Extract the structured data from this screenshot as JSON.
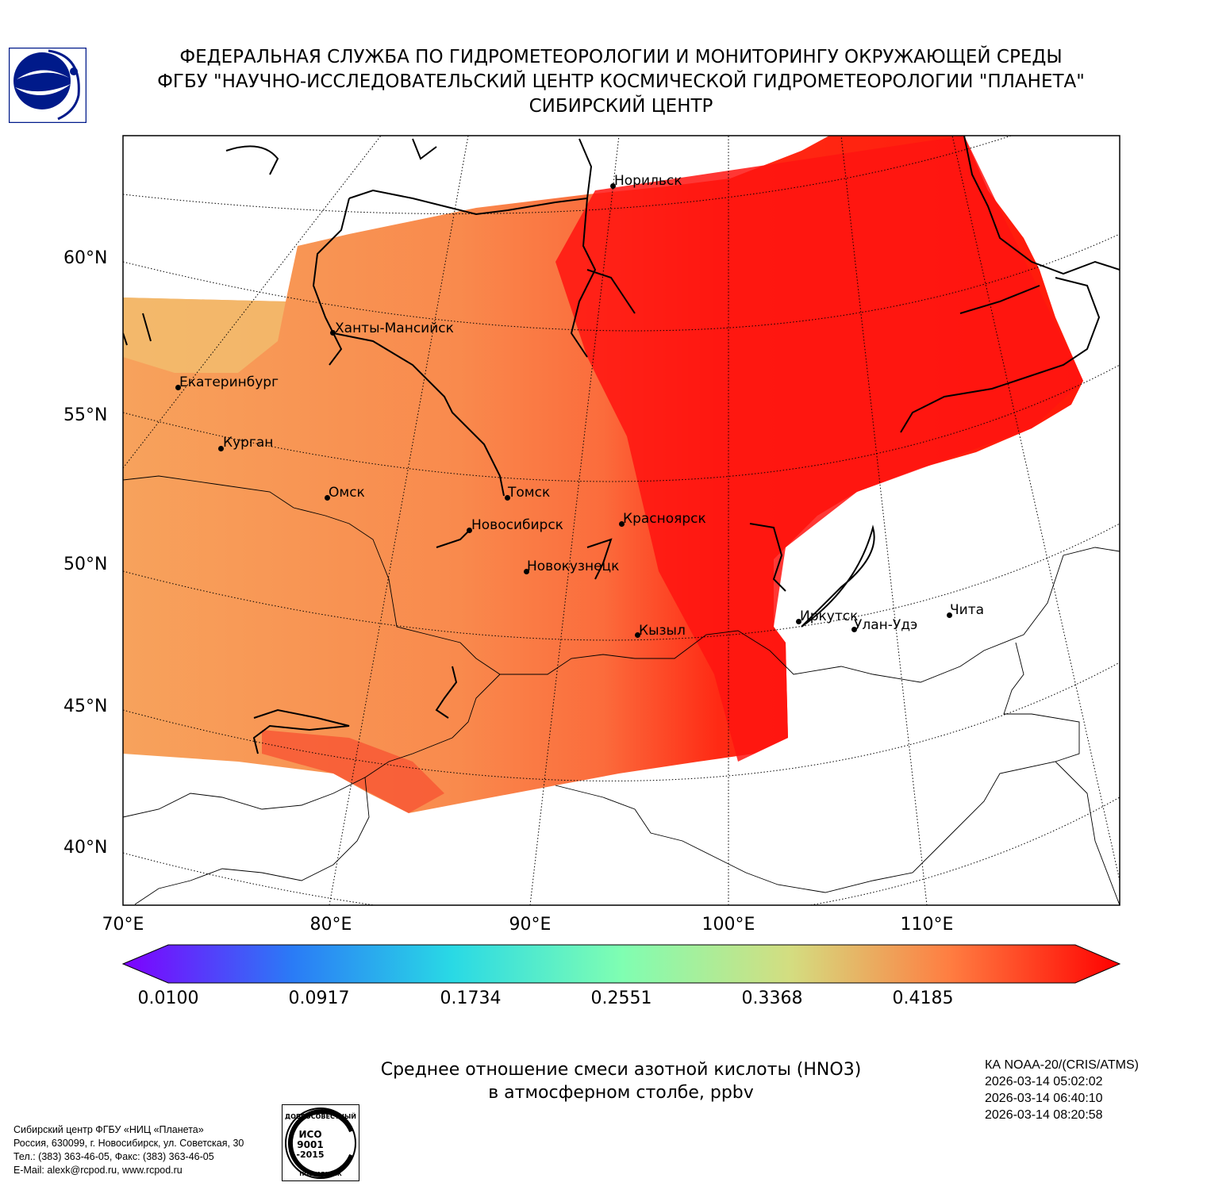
{
  "header": {
    "line1": "ФЕДЕРАЛЬНАЯ СЛУЖБА ПО ГИДРОМЕТЕОРОЛОГИИ И МОНИТОРИНГУ ОКРУЖАЮЩЕЙ СРЕДЫ",
    "line2": "ФГБУ \"НАУЧНО-ИССЛЕДОВАТЕЛЬСКИЙ ЦЕНТР КОСМИЧЕСКОЙ ГИДРОМЕТЕОРОЛОГИИ \"ПЛАНЕТА\"",
    "line3": "СИБИРСКИЙ ЦЕНТР"
  },
  "map": {
    "lat_labels": [
      "60°N",
      "55°N",
      "50°N",
      "45°N",
      "40°N"
    ],
    "lon_labels": [
      "70°E",
      "80°E",
      "90°E",
      "100°E",
      "110°E"
    ],
    "cities": [
      {
        "name": "Норильск"
      },
      {
        "name": "Ханты-Мансийск"
      },
      {
        "name": "Екатеринбург"
      },
      {
        "name": "Курган"
      },
      {
        "name": "Омск"
      },
      {
        "name": "Томск"
      },
      {
        "name": "Новосибирск"
      },
      {
        "name": "Красноярск"
      },
      {
        "name": "Новокузнецк"
      },
      {
        "name": "Иркутск"
      },
      {
        "name": "Улан-Удэ"
      },
      {
        "name": "Чита"
      },
      {
        "name": "Кызыл"
      }
    ]
  },
  "colorbar": {
    "ticks": [
      "0.0100",
      "0.0917",
      "0.1734",
      "0.2551",
      "0.3368",
      "0.4185"
    ],
    "colors": [
      "#7f00ff",
      "#2a7bf6",
      "#29d9e5",
      "#7ffeb2",
      "#d4dd80",
      "#ff7d41",
      "#ff0000"
    ]
  },
  "title": {
    "line1": "Среднее отношение смеси азотной кислоты (HNO3)",
    "line2": "в атмосферном столбе, ppbv"
  },
  "satellite": {
    "name": "КА NOAA-20/(CRIS/ATMS)",
    "times": [
      "2026-03-14 05:02:02",
      "2026-03-14 06:40:10",
      "2026-03-14 08:20:58"
    ]
  },
  "footer": {
    "org": "Сибирский центр ФГБУ «НИЦ «Планета»",
    "address": "Россия, 630099, г. Новосибирск, ул. Советская, 30",
    "phone": "Тел.: (383) 363-46-05, Факс: (383) 363-46-05",
    "email": "E-Mail: alexk@rcpod.ru, www.rcpod.ru",
    "iso_top": "ДОБРОСОВЕСТНЫЙ",
    "iso_mid1": "ИСО",
    "iso_mid2": "9001",
    "iso_mid3": "-2015",
    "iso_bottom": "ПОСТАВЩИК"
  }
}
